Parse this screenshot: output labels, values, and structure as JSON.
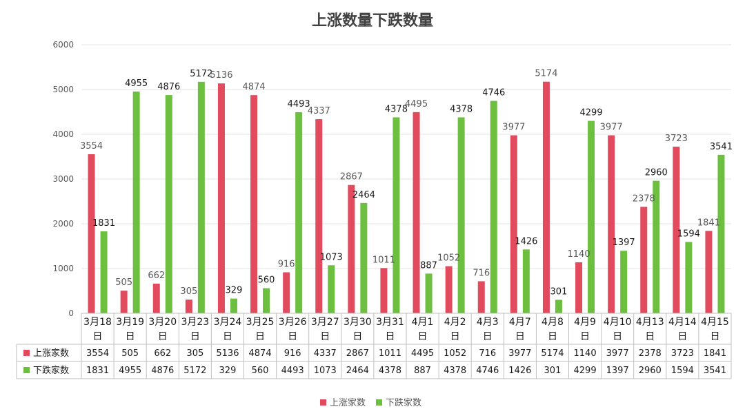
{
  "chart_data": {
    "type": "bar",
    "title": "上涨数量下跌数量",
    "categories": [
      [
        "3月18",
        "日"
      ],
      [
        "3月19",
        "日"
      ],
      [
        "3月20",
        "日"
      ],
      [
        "3月23",
        "日"
      ],
      [
        "3月24",
        "日"
      ],
      [
        "3月25",
        "日"
      ],
      [
        "3月26",
        "日"
      ],
      [
        "3月27",
        "日"
      ],
      [
        "3月30",
        "日"
      ],
      [
        "3月31",
        "日"
      ],
      [
        "4月1",
        "日"
      ],
      [
        "4月2",
        "日"
      ],
      [
        "4月3",
        "日"
      ],
      [
        "4月7",
        "日"
      ],
      [
        "4月8",
        "日"
      ],
      [
        "4月9",
        "日"
      ],
      [
        "4月10",
        "日"
      ],
      [
        "4月13",
        "日"
      ],
      [
        "4月14",
        "日"
      ],
      [
        "4月15",
        "日"
      ]
    ],
    "series": [
      {
        "name": "上涨家数",
        "color": "#e24a5e",
        "values": [
          3554,
          505,
          662,
          305,
          5136,
          4874,
          916,
          4337,
          2867,
          1011,
          4495,
          1052,
          716,
          3977,
          5174,
          1140,
          3977,
          2378,
          3723,
          1841
        ]
      },
      {
        "name": "下跌家数",
        "color": "#6dbf3f",
        "values": [
          1831,
          4955,
          4876,
          5172,
          329,
          560,
          4493,
          1073,
          2464,
          4378,
          887,
          4378,
          4746,
          1426,
          301,
          4299,
          1397,
          2960,
          1594,
          3541
        ]
      }
    ],
    "ylim": [
      0,
      6000
    ],
    "yticks": [
      0,
      1000,
      2000,
      3000,
      4000,
      5000,
      6000
    ],
    "grid": true,
    "data_table": true,
    "legend": "bottom"
  }
}
